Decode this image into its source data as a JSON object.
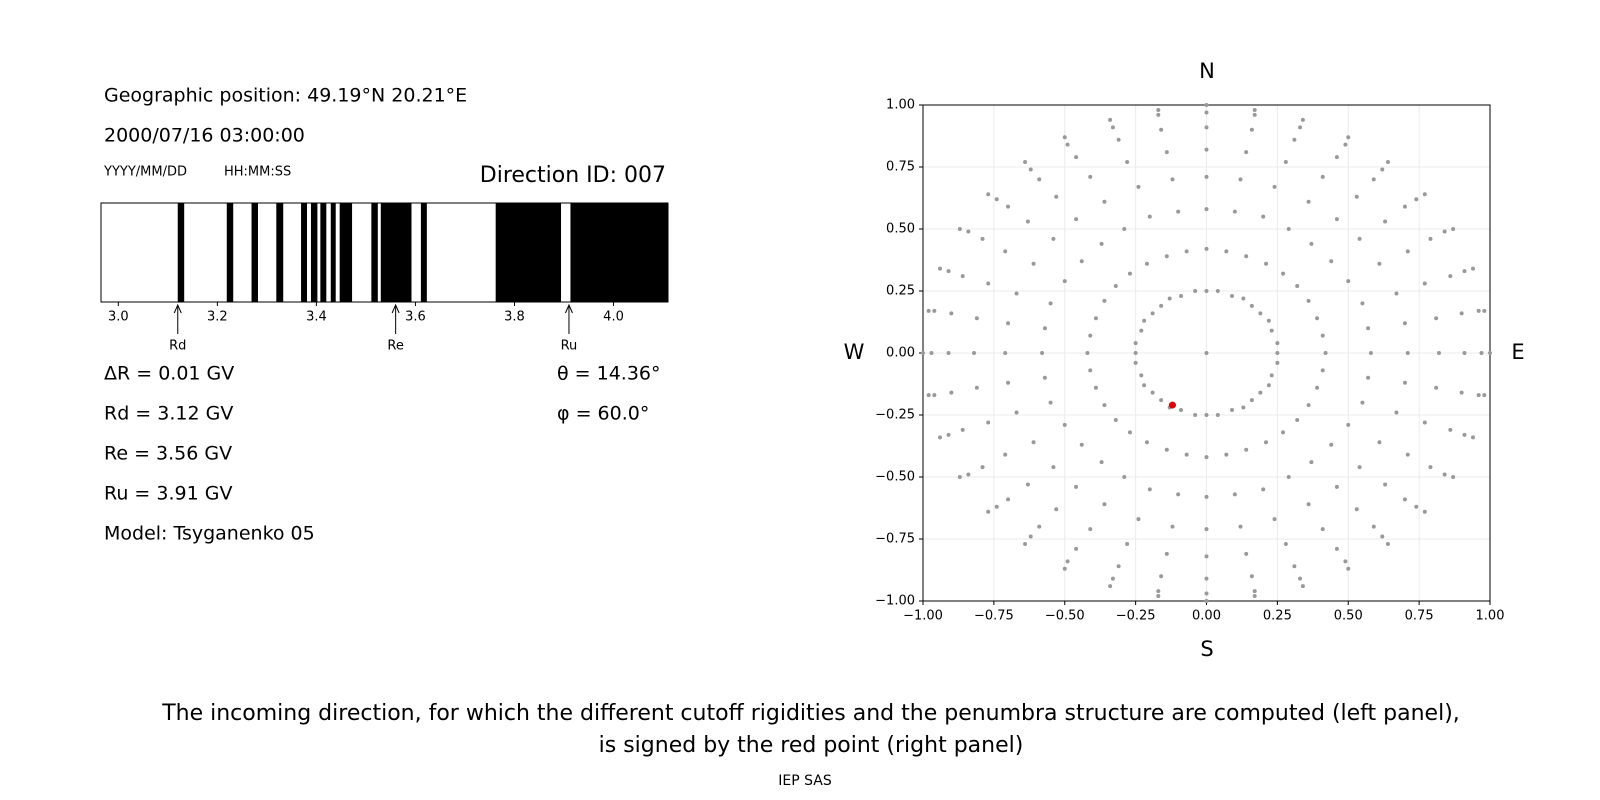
{
  "header": {
    "position": "Geographic position: 49.19°N 20.21°E",
    "datetime": "2000/07/16 03:00:00",
    "date_format": "YYYY/MM/DD",
    "time_format": "HH:MM:SS",
    "direction_id": "Direction ID: 007"
  },
  "penumbra": {
    "type": "penumbra",
    "color": "#000000",
    "xlim": [
      2.965,
      4.11
    ],
    "xticks": [
      {
        "value": 3,
        "label": "3.0"
      },
      {
        "value": 3.2,
        "label": "3.2"
      },
      {
        "value": 3.4,
        "label": "3.4"
      },
      {
        "value": 3.6,
        "label": "3.6"
      },
      {
        "value": 3.8,
        "label": "3.8"
      },
      {
        "value": 4,
        "label": "4.0"
      }
    ],
    "black_bands": [
      [
        3.12,
        3.133
      ],
      [
        3.219,
        3.232
      ],
      [
        3.269,
        3.282
      ],
      [
        3.319,
        3.333
      ],
      [
        3.369,
        3.381
      ],
      [
        3.389,
        3.402
      ],
      [
        3.408,
        3.42
      ],
      [
        3.429,
        3.439
      ],
      [
        3.447,
        3.472
      ],
      [
        3.511,
        3.524
      ],
      [
        3.53,
        3.592
      ],
      [
        3.611,
        3.623
      ],
      [
        3.762,
        3.894
      ],
      [
        3.913,
        4.11
      ]
    ],
    "markers": [
      {
        "label": "Rd",
        "value": 3.12
      },
      {
        "label": "Re",
        "value": 3.56
      },
      {
        "label": "Ru",
        "value": 3.91
      }
    ]
  },
  "results": [
    "ΔR = 0.01 GV",
    "Rd = 3.12 GV",
    "Re = 3.56 GV",
    "Ru = 3.91 GV",
    "Model: Tsyganenko 05"
  ],
  "angles": [
    "θ = 14.36°",
    "φ = 60.0°"
  ],
  "chart_data": {
    "type": "scatter",
    "grid": true,
    "directions": {
      "north": "N",
      "south": "S",
      "west": "W",
      "east": "E"
    },
    "xlim": [
      -1,
      1
    ],
    "ylim": [
      -1,
      1
    ],
    "xticks": [
      {
        "value": -1,
        "label": "−1.00"
      },
      {
        "value": -0.75,
        "label": "−0.75"
      },
      {
        "value": -0.5,
        "label": "−0.50"
      },
      {
        "value": -0.25,
        "label": "−0.25"
      },
      {
        "value": 0,
        "label": "0.00"
      },
      {
        "value": 0.25,
        "label": "0.25"
      },
      {
        "value": 0.5,
        "label": "0.50"
      },
      {
        "value": 0.75,
        "label": "0.75"
      },
      {
        "value": 1,
        "label": "1.00"
      }
    ],
    "yticks": [
      {
        "value": -1,
        "label": "−1.00"
      },
      {
        "value": -0.75,
        "label": "−0.75"
      },
      {
        "value": -0.5,
        "label": "−0.50"
      },
      {
        "value": -0.25,
        "label": "−0.25"
      },
      {
        "value": 0,
        "label": "0.00"
      },
      {
        "value": 0.25,
        "label": "0.25"
      },
      {
        "value": 0.5,
        "label": "0.50"
      },
      {
        "value": 0.75,
        "label": "0.75"
      },
      {
        "value": 1,
        "label": "1.00"
      }
    ],
    "series": [
      {
        "color": "#999999",
        "x": [
          0.42,
          0.58,
          0.71,
          0.82,
          0.91,
          0.97,
          1,
          0.41,
          0.57,
          0.7,
          0.81,
          0.9,
          0.96,
          0.98,
          0.39,
          0.55,
          0.67,
          0.77,
          0.86,
          0.91,
          0.94,
          0.36,
          0.5,
          0.61,
          0.71,
          0.79,
          0.84,
          0.87,
          0.32,
          0.44,
          0.54,
          0.63,
          0.7,
          0.74,
          0.77,
          0.27,
          0.37,
          0.46,
          0.53,
          0.59,
          0.62,
          0.64,
          0.21,
          0.29,
          0.36,
          0.41,
          0.46,
          0.49,
          0.5,
          0.14,
          0.2,
          0.24,
          0.28,
          0.31,
          0.33,
          0.34,
          0.07,
          0.1,
          0.12,
          0.14,
          0.16,
          0.17,
          0.17,
          0,
          0,
          0,
          0,
          0,
          0,
          0,
          -0.07,
          -0.1,
          -0.12,
          -0.14,
          -0.16,
          -0.17,
          -0.17,
          -0.14,
          -0.2,
          -0.24,
          -0.28,
          -0.31,
          -0.33,
          -0.34,
          -0.21,
          -0.29,
          -0.36,
          -0.41,
          -0.46,
          -0.49,
          -0.5,
          -0.27,
          -0.37,
          -0.46,
          -0.53,
          -0.59,
          -0.62,
          -0.64,
          -0.32,
          -0.44,
          -0.54,
          -0.63,
          -0.7,
          -0.74,
          -0.77,
          -0.36,
          -0.5,
          -0.61,
          -0.71,
          -0.79,
          -0.84,
          -0.87,
          -0.39,
          -0.55,
          -0.67,
          -0.77,
          -0.86,
          -0.91,
          -0.94,
          -0.41,
          -0.57,
          -0.7,
          -0.81,
          -0.9,
          -0.96,
          -0.98,
          -0.42,
          -0.58,
          -0.71,
          -0.82,
          -0.91,
          -0.97,
          -1,
          -0.41,
          -0.57,
          -0.7,
          -0.81,
          -0.9,
          -0.96,
          -0.98,
          -0.39,
          -0.55,
          -0.67,
          -0.77,
          -0.86,
          -0.91,
          -0.94,
          -0.36,
          -0.5,
          -0.61,
          -0.71,
          -0.79,
          -0.84,
          -0.87,
          -0.32,
          -0.44,
          -0.54,
          -0.63,
          -0.7,
          -0.74,
          -0.77,
          -0.27,
          -0.37,
          -0.46,
          -0.53,
          -0.59,
          -0.62,
          -0.64,
          -0.21,
          -0.29,
          -0.36,
          -0.41,
          -0.46,
          -0.49,
          -0.5,
          -0.14,
          -0.2,
          -0.24,
          -0.28,
          -0.31,
          -0.33,
          -0.34,
          -0.07,
          -0.1,
          -0.12,
          -0.14,
          -0.16,
          -0.17,
          -0.17,
          0,
          0,
          0,
          0,
          0,
          0,
          0,
          0.07,
          0.1,
          0.12,
          0.14,
          0.16,
          0.17,
          0.17,
          0.14,
          0.2,
          0.24,
          0.28,
          0.31,
          0.33,
          0.34,
          0.21,
          0.29,
          0.36,
          0.41,
          0.46,
          0.49,
          0.5,
          0.27,
          0.37,
          0.46,
          0.53,
          0.59,
          0.62,
          0.64,
          0.32,
          0.44,
          0.54,
          0.63,
          0.7,
          0.74,
          0.77,
          0.36,
          0.5,
          0.61,
          0.71,
          0.79,
          0.84,
          0.87,
          0.39,
          0.55,
          0.67,
          0.77,
          0.86,
          0.91,
          0.94,
          0.41,
          0.57,
          0.7,
          0.81,
          0.9,
          0.96,
          0.98,
          0.25,
          0.25,
          0.23,
          0.22,
          0.19,
          0.16,
          0.13,
          0.09,
          0.04,
          0,
          -0.04,
          -0.09,
          -0.13,
          -0.16,
          -0.19,
          -0.22,
          -0.23,
          -0.25,
          -0.25,
          -0.25,
          -0.23,
          -0.22,
          -0.19,
          -0.16,
          -0.13,
          -0.09,
          -0.04,
          0,
          0.04,
          0.09,
          0.13,
          0.16,
          0.19,
          0.22,
          0.23,
          0.25,
          0
        ],
        "values": [
          0,
          0,
          0,
          0,
          0,
          0,
          0,
          0.07,
          0.1,
          0.12,
          0.14,
          0.16,
          0.17,
          0.17,
          0.14,
          0.2,
          0.24,
          0.28,
          0.31,
          0.33,
          0.34,
          0.21,
          0.29,
          0.36,
          0.41,
          0.46,
          0.49,
          0.5,
          0.27,
          0.37,
          0.46,
          0.53,
          0.59,
          0.62,
          0.64,
          0.32,
          0.44,
          0.54,
          0.63,
          0.7,
          0.74,
          0.77,
          0.36,
          0.5,
          0.61,
          0.71,
          0.79,
          0.84,
          0.87,
          0.39,
          0.55,
          0.67,
          0.77,
          0.86,
          0.91,
          0.94,
          0.41,
          0.57,
          0.7,
          0.81,
          0.9,
          0.96,
          0.98,
          0.42,
          0.58,
          0.71,
          0.82,
          0.91,
          0.97,
          1,
          0.41,
          0.57,
          0.7,
          0.81,
          0.9,
          0.96,
          0.98,
          0.39,
          0.55,
          0.67,
          0.77,
          0.86,
          0.91,
          0.94,
          0.36,
          0.5,
          0.61,
          0.71,
          0.79,
          0.84,
          0.87,
          0.32,
          0.44,
          0.54,
          0.63,
          0.7,
          0.74,
          0.77,
          0.27,
          0.37,
          0.46,
          0.53,
          0.59,
          0.62,
          0.64,
          0.21,
          0.29,
          0.36,
          0.41,
          0.46,
          0.49,
          0.5,
          0.14,
          0.2,
          0.24,
          0.28,
          0.31,
          0.33,
          0.34,
          0.07,
          0.1,
          0.12,
          0.14,
          0.16,
          0.17,
          0.17,
          0,
          0,
          0,
          0,
          0,
          0,
          0,
          -0.07,
          -0.1,
          -0.12,
          -0.14,
          -0.16,
          -0.17,
          -0.17,
          -0.14,
          -0.2,
          -0.24,
          -0.28,
          -0.31,
          -0.33,
          -0.34,
          -0.21,
          -0.29,
          -0.36,
          -0.41,
          -0.46,
          -0.49,
          -0.5,
          -0.27,
          -0.37,
          -0.46,
          -0.53,
          -0.59,
          -0.62,
          -0.64,
          -0.32,
          -0.44,
          -0.54,
          -0.63,
          -0.7,
          -0.74,
          -0.77,
          -0.36,
          -0.5,
          -0.61,
          -0.71,
          -0.79,
          -0.84,
          -0.87,
          -0.39,
          -0.55,
          -0.67,
          -0.77,
          -0.86,
          -0.91,
          -0.94,
          -0.41,
          -0.57,
          -0.7,
          -0.81,
          -0.9,
          -0.96,
          -0.98,
          -0.42,
          -0.58,
          -0.71,
          -0.82,
          -0.91,
          -0.97,
          -1,
          -0.41,
          -0.57,
          -0.7,
          -0.81,
          -0.9,
          -0.96,
          -0.98,
          -0.39,
          -0.55,
          -0.67,
          -0.77,
          -0.86,
          -0.91,
          -0.94,
          -0.36,
          -0.5,
          -0.61,
          -0.71,
          -0.79,
          -0.84,
          -0.87,
          -0.32,
          -0.44,
          -0.54,
          -0.63,
          -0.7,
          -0.74,
          -0.77,
          -0.27,
          -0.37,
          -0.46,
          -0.53,
          -0.59,
          -0.62,
          -0.64,
          -0.21,
          -0.29,
          -0.36,
          -0.41,
          -0.46,
          -0.49,
          -0.5,
          -0.14,
          -0.2,
          -0.24,
          -0.28,
          -0.31,
          -0.33,
          -0.34,
          -0.07,
          -0.1,
          -0.12,
          -0.14,
          -0.16,
          -0.17,
          -0.17,
          0,
          0.04,
          0.09,
          0.13,
          0.16,
          0.19,
          0.22,
          0.23,
          0.25,
          0.25,
          0.25,
          0.23,
          0.22,
          0.19,
          0.16,
          0.13,
          0.09,
          0.04,
          0,
          -0.04,
          -0.09,
          -0.13,
          -0.16,
          -0.19,
          -0.22,
          -0.23,
          -0.25,
          -0.25,
          -0.25,
          -0.23,
          -0.22,
          -0.19,
          -0.16,
          -0.13,
          -0.09,
          -0.04,
          0
        ]
      },
      {
        "color": "#e00000",
        "x": [
          -0.12
        ],
        "values": [
          -0.21
        ]
      }
    ]
  },
  "caption": [
    "The incoming direction, for which the different cutoff rigidities and the penumbra structure are computed (left panel),",
    "is signed by the red point (right panel)"
  ],
  "footer": "IEP SAS"
}
